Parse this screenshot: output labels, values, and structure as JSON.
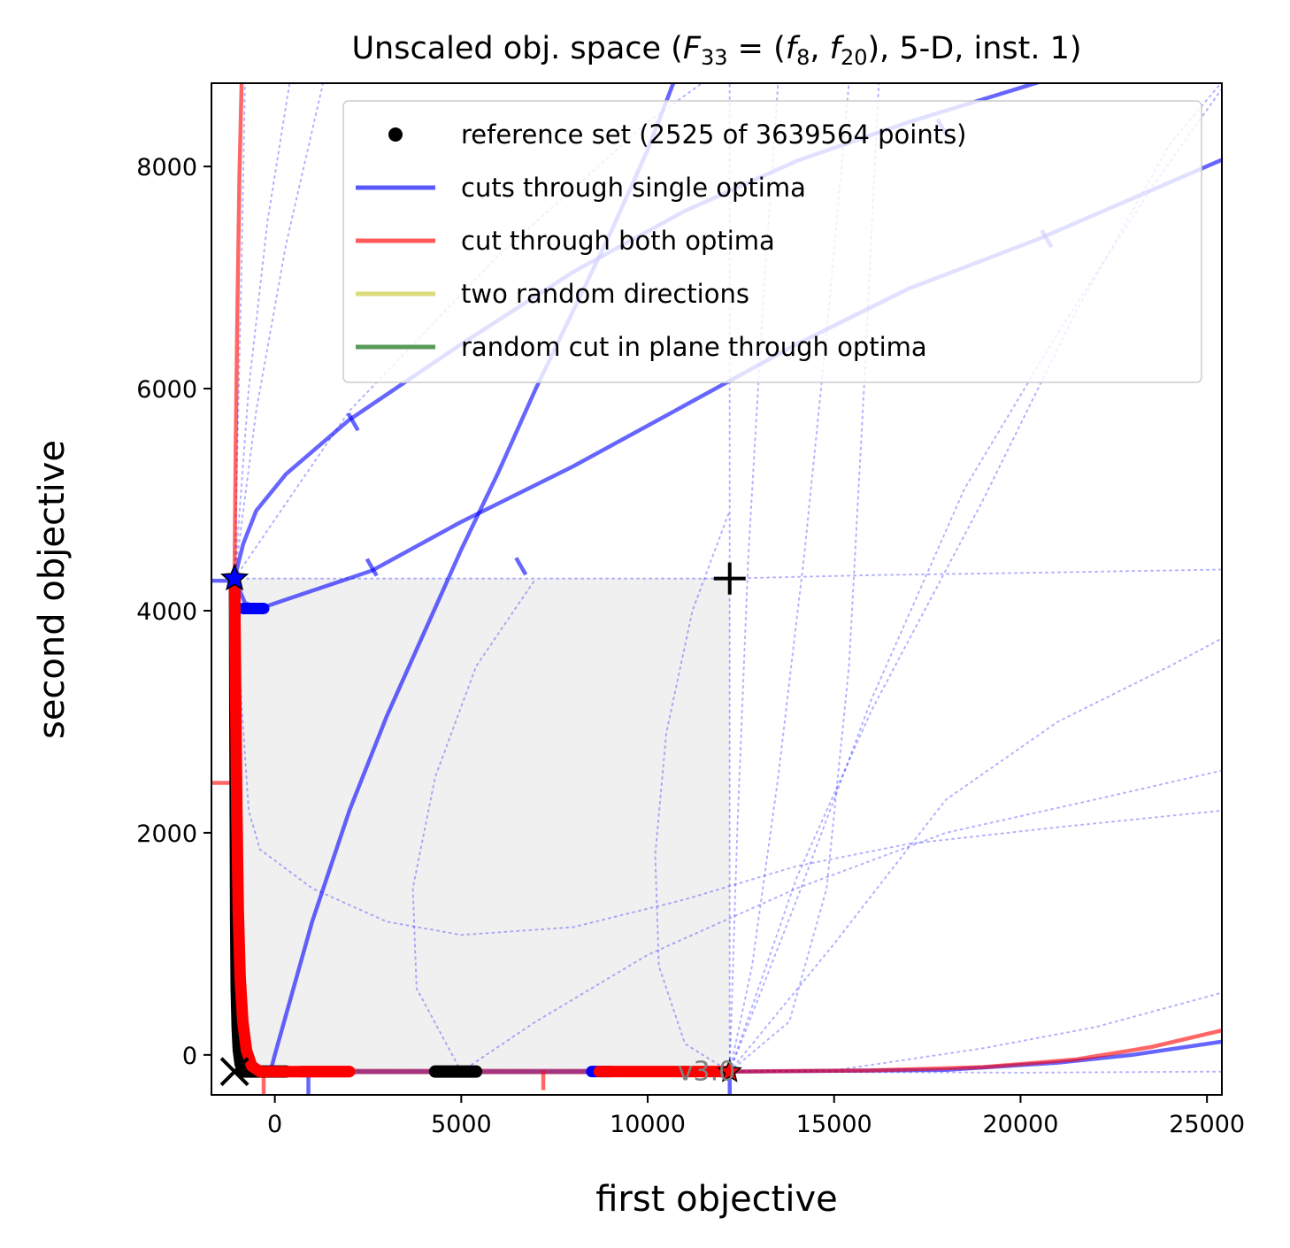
{
  "chart_data": {
    "type": "line",
    "title": "Unscaled obj. space (F33 = (f8, f20), 5-D, inst. 1)",
    "title_parts": {
      "prefix": "Unscaled obj. space (",
      "F": "F",
      "F_sub": "33",
      "eq": " = (",
      "f1": "f",
      "f1_sub": "8",
      "comma": ", ",
      "f2": "f",
      "f2_sub": "20",
      "suffix": "), 5-D, inst. 1)"
    },
    "xlabel": "first objective",
    "ylabel": "second objective",
    "xlim": [
      -1700,
      25400
    ],
    "ylim": [
      -360,
      8750
    ],
    "xticks": [
      0,
      5000,
      10000,
      15000,
      20000,
      25000
    ],
    "yticks": [
      0,
      2000,
      4000,
      6000,
      8000
    ],
    "grid": false,
    "legend_position": "top-right",
    "watermark": "v3.0",
    "legend": [
      {
        "label": "reference set (2525 of 3639564 points)",
        "kind": "marker",
        "color": "#000000"
      },
      {
        "label": "cuts through single optima",
        "kind": "line",
        "color": "#0000ff"
      },
      {
        "label": "cut through both optima",
        "kind": "line",
        "color": "#ff0000"
      },
      {
        "label": "two random directions",
        "kind": "line",
        "color": "#c8c832"
      },
      {
        "label": "random cut in plane through optima",
        "kind": "line",
        "color": "#006400"
      }
    ],
    "region_of_interest": {
      "x": [
        -1080,
        12200
      ],
      "y": [
        -150,
        4290
      ],
      "color": "#f0f0f0"
    },
    "nadir_point": [
      12200,
      4290
    ],
    "ideal_point": [
      -1080,
      -150
    ],
    "optimum_1": [
      -1080,
      4290
    ],
    "optimum_2": [
      12200,
      -150
    ],
    "series": [
      {
        "kind": "single-cut",
        "color": "#0000ff",
        "opacity": 0.6,
        "points": [
          [
            -1080,
            4290
          ],
          [
            -850,
            4600
          ],
          [
            -500,
            4900
          ],
          [
            300,
            5230
          ],
          [
            2000,
            5720
          ],
          [
            5000,
            6400
          ],
          [
            8000,
            7050
          ],
          [
            11000,
            7600
          ],
          [
            14000,
            8050
          ],
          [
            17000,
            8400
          ],
          [
            20500,
            8760
          ]
        ]
      },
      {
        "kind": "single-cut",
        "color": "#0000ff",
        "opacity": 0.6,
        "points": [
          [
            -1080,
            4290
          ],
          [
            -800,
            4070
          ],
          [
            -400,
            4020
          ],
          [
            300,
            4100
          ],
          [
            2600,
            4360
          ],
          [
            5000,
            4800
          ],
          [
            8000,
            5300
          ],
          [
            11000,
            5850
          ],
          [
            14000,
            6400
          ],
          [
            17000,
            6900
          ],
          [
            20500,
            7350
          ],
          [
            25400,
            8060
          ]
        ]
      },
      {
        "kind": "single-cut",
        "color": "#0000ff",
        "opacity": 0.6,
        "points": [
          [
            -120,
            -150
          ],
          [
            0,
            0
          ],
          [
            1000,
            1200
          ],
          [
            2000,
            2200
          ],
          [
            3000,
            3050
          ],
          [
            4000,
            3800
          ],
          [
            5000,
            4550
          ],
          [
            6000,
            5250
          ],
          [
            7000,
            6000
          ],
          [
            8000,
            6700
          ],
          [
            9000,
            7400
          ],
          [
            10000,
            8150
          ],
          [
            10700,
            8760
          ]
        ]
      },
      {
        "kind": "single-cut",
        "color": "#0000ff",
        "opacity": 0.6,
        "points": [
          [
            -1080,
            -150
          ],
          [
            5000,
            -150
          ],
          [
            12200,
            -150
          ],
          [
            18000,
            -135
          ],
          [
            21000,
            -70
          ],
          [
            23000,
            0
          ],
          [
            25400,
            120
          ]
        ]
      },
      {
        "kind": "both-cut",
        "color": "#ff0000",
        "opacity": 0.6,
        "points": [
          [
            -1080,
            4290
          ],
          [
            -1050,
            5500
          ],
          [
            -1000,
            6800
          ],
          [
            -950,
            7900
          ],
          [
            -890,
            8760
          ]
        ]
      },
      {
        "kind": "both-cut",
        "color": "#ff0000",
        "opacity": 0.6,
        "points": [
          [
            12200,
            -150
          ],
          [
            16000,
            -140
          ],
          [
            19000,
            -110
          ],
          [
            21500,
            -40
          ],
          [
            23500,
            70
          ],
          [
            25400,
            220
          ]
        ]
      },
      {
        "kind": "dotted",
        "color": "#0000ff",
        "opacity": 0.3,
        "points": [
          [
            -1080,
            4290
          ],
          [
            4000,
            4290
          ],
          [
            8000,
            4290
          ],
          [
            12200,
            4290
          ],
          [
            16000,
            4320
          ],
          [
            20000,
            4340
          ],
          [
            25400,
            4370
          ]
        ]
      },
      {
        "kind": "dotted",
        "color": "#0000ff",
        "opacity": 0.3,
        "points": [
          [
            -1080,
            -150
          ],
          [
            5000,
            -150
          ],
          [
            12200,
            -150
          ],
          [
            20000,
            -160
          ],
          [
            25400,
            -150
          ]
        ]
      },
      {
        "kind": "dotted",
        "color": "#0000ff",
        "opacity": 0.3,
        "points": [
          [
            -1080,
            4290
          ],
          [
            -900,
            3200
          ],
          [
            -700,
            2200
          ],
          [
            -400,
            1850
          ],
          [
            1000,
            1500
          ],
          [
            3000,
            1200
          ],
          [
            5000,
            1080
          ],
          [
            8000,
            1150
          ],
          [
            11000,
            1400
          ],
          [
            14000,
            1700
          ],
          [
            17000,
            1900
          ],
          [
            21000,
            2050
          ],
          [
            25400,
            2200
          ]
        ]
      },
      {
        "kind": "dotted",
        "color": "#0000ff",
        "opacity": 0.3,
        "points": [
          [
            12200,
            -150
          ],
          [
            12200,
            1500
          ],
          [
            12200,
            3000
          ],
          [
            12200,
            4290
          ],
          [
            12200,
            6000
          ],
          [
            12200,
            8760
          ]
        ]
      },
      {
        "kind": "dotted",
        "color": "#0000ff",
        "opacity": 0.3,
        "points": [
          [
            5000,
            -150
          ],
          [
            7000,
            300
          ],
          [
            10000,
            900
          ],
          [
            14000,
            1500
          ],
          [
            18000,
            2000
          ],
          [
            22000,
            2300
          ],
          [
            25400,
            2560
          ]
        ]
      },
      {
        "kind": "dotted",
        "color": "#0000ff",
        "opacity": 0.3,
        "points": [
          [
            12200,
            -150
          ],
          [
            15000,
            1000
          ],
          [
            18000,
            2300
          ],
          [
            21000,
            3000
          ],
          [
            24000,
            3500
          ],
          [
            25400,
            3750
          ]
        ]
      },
      {
        "kind": "dotted",
        "color": "#0000ff",
        "opacity": 0.3,
        "points": [
          [
            12200,
            -150
          ],
          [
            12400,
            2000
          ],
          [
            12700,
            4500
          ],
          [
            13100,
            6800
          ],
          [
            13500,
            8760
          ]
        ]
      },
      {
        "kind": "dotted",
        "color": "#0000ff",
        "opacity": 0.3,
        "points": [
          [
            12200,
            -150
          ],
          [
            14000,
            1400
          ],
          [
            16000,
            3200
          ],
          [
            18500,
            5100
          ],
          [
            21000,
            6500
          ],
          [
            23500,
            7800
          ],
          [
            25400,
            8700
          ]
        ]
      },
      {
        "kind": "dotted",
        "color": "#0000ff",
        "opacity": 0.3,
        "points": [
          [
            12200,
            -150
          ],
          [
            15000,
            -140
          ],
          [
            19000,
            60
          ],
          [
            22000,
            250
          ],
          [
            25400,
            560
          ]
        ]
      },
      {
        "kind": "dotted",
        "color": "#0000ff",
        "opacity": 0.3,
        "points": [
          [
            12200,
            -150
          ],
          [
            11000,
            100
          ],
          [
            10300,
            800
          ],
          [
            10200,
            1800
          ],
          [
            10500,
            2900
          ],
          [
            11200,
            4000
          ],
          [
            12200,
            4900
          ]
        ]
      },
      {
        "kind": "dotted",
        "color": "#0000ff",
        "opacity": 0.3,
        "points": [
          [
            5000,
            -150
          ],
          [
            3800,
            600
          ],
          [
            3700,
            1500
          ],
          [
            4300,
            2500
          ],
          [
            5400,
            3500
          ],
          [
            7000,
            4290
          ]
        ]
      },
      {
        "kind": "dotted",
        "color": "#0000ff",
        "opacity": 0.3,
        "points": [
          [
            -1080,
            4290
          ],
          [
            -1000,
            5500
          ],
          [
            -900,
            7000
          ],
          [
            -800,
            8760
          ]
        ]
      },
      {
        "kind": "dotted",
        "color": "#0000ff",
        "opacity": 0.3,
        "points": [
          [
            -1080,
            4290
          ],
          [
            -700,
            6000
          ],
          [
            -200,
            7500
          ],
          [
            400,
            8760
          ]
        ]
      },
      {
        "kind": "dotted",
        "color": "#0000ff",
        "opacity": 0.3,
        "points": [
          [
            -1080,
            4290
          ],
          [
            -500,
            5800
          ],
          [
            300,
            7300
          ],
          [
            1300,
            8760
          ]
        ]
      },
      {
        "kind": "dotted",
        "color": "#0000ff",
        "opacity": 0.3,
        "points": [
          [
            -1080,
            4290
          ],
          [
            2000,
            5800
          ],
          [
            6000,
            7200
          ],
          [
            10000,
            8400
          ],
          [
            11500,
            8760
          ]
        ]
      },
      {
        "kind": "dotted",
        "color": "#0000ff",
        "opacity": 0.3,
        "points": [
          [
            12200,
            -150
          ],
          [
            14000,
            1600
          ],
          [
            16000,
            3100
          ],
          [
            19000,
            5000
          ],
          [
            21500,
            6700
          ],
          [
            24000,
            8200
          ],
          [
            25400,
            8760
          ]
        ]
      },
      {
        "kind": "dotted",
        "color": "#0000ff",
        "opacity": 0.3,
        "points": [
          [
            12200,
            -150
          ],
          [
            12800,
            800
          ],
          [
            13500,
            2500
          ],
          [
            14200,
            4500
          ],
          [
            14800,
            6500
          ],
          [
            15400,
            8760
          ]
        ]
      },
      {
        "kind": "dotted",
        "color": "#0000ff",
        "opacity": 0.3,
        "points": [
          [
            12200,
            -150
          ],
          [
            13800,
            300
          ],
          [
            14800,
            1500
          ],
          [
            15400,
            3500
          ],
          [
            15800,
            6000
          ],
          [
            16200,
            8760
          ]
        ]
      }
    ],
    "reference_set_segments": [
      {
        "x": [
          4300,
          5400
        ],
        "y": -150
      },
      {
        "x": [
          -800,
          300
        ],
        "y": -150
      }
    ],
    "reference_set_curve": [
      [
        -1080,
        4290
      ],
      [
        -1070,
        3000
      ],
      [
        -1060,
        2000
      ],
      [
        -1050,
        1200
      ],
      [
        -1035,
        600
      ],
      [
        -1010,
        250
      ],
      [
        -980,
        50
      ],
      [
        -930,
        -80
      ],
      [
        -850,
        -150
      ]
    ],
    "red_front_curve": [
      [
        -1080,
        4290
      ],
      [
        -1050,
        3200
      ],
      [
        -1020,
        2200
      ],
      [
        -980,
        1300
      ],
      [
        -930,
        700
      ],
      [
        -860,
        300
      ],
      [
        -760,
        40
      ],
      [
        -620,
        -100
      ],
      [
        -400,
        -150
      ],
      [
        2000,
        -150
      ]
    ],
    "red_segments": [
      {
        "x": [
          700,
          2000
        ],
        "y": -150
      },
      {
        "x": [
          8700,
          12100
        ],
        "y": -150
      }
    ],
    "blue_thick_segments": [
      {
        "x": [
          -850,
          -300
        ],
        "y": 4020
      },
      {
        "x": [
          8500,
          9000
        ],
        "y": -150
      }
    ],
    "pink_segment": {
      "x": [
        -400,
        12200
      ],
      "y": -150
    },
    "ticks_marks": [
      {
        "at": [
          2100,
          5700
        ],
        "angle": 60,
        "color": "#0000ff"
      },
      {
        "at": [
          2600,
          4390
        ],
        "angle": 60,
        "color": "#0000ff"
      },
      {
        "at": [
          6600,
          4400
        ],
        "angle": 60,
        "color": "#0000ff"
      },
      {
        "at": [
          17900,
          8350
        ],
        "angle": 60,
        "color": "#0000ff"
      },
      {
        "at": [
          20700,
          7350
        ],
        "angle": 60,
        "color": "#0000ff"
      },
      {
        "at": [
          900,
          -280
        ],
        "angle": 90,
        "color": "#0000ff"
      },
      {
        "at": [
          12200,
          -280
        ],
        "angle": 90,
        "color": "#0000ff"
      },
      {
        "at": [
          7200,
          -230
        ],
        "angle": 90,
        "color": "#ff0000"
      },
      {
        "at": [
          -300,
          -280
        ],
        "angle": 90,
        "color": "#ff0000"
      },
      {
        "at": [
          -1430,
          2450
        ],
        "angle": 0,
        "color": "#ff0000"
      },
      {
        "at": [
          -1430,
          4270
        ],
        "angle": 0,
        "color": "#0000ff"
      }
    ]
  }
}
